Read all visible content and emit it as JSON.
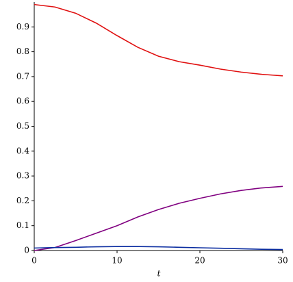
{
  "chart_data": {
    "type": "line",
    "x_label": "t",
    "x": [
      0,
      2.5,
      5,
      7.5,
      10,
      12.5,
      15,
      17.5,
      20,
      22.5,
      25,
      27.5,
      30
    ],
    "series": [
      {
        "color": "#e01010",
        "values": [
          0.99,
          0.98,
          0.955,
          0.915,
          0.865,
          0.818,
          0.782,
          0.76,
          0.746,
          0.73,
          0.718,
          0.709,
          0.703
        ]
      },
      {
        "color": "#800080",
        "values": [
          0,
          0.012,
          0.04,
          0.07,
          0.1,
          0.135,
          0.165,
          0.19,
          0.21,
          0.228,
          0.242,
          0.252,
          0.258
        ]
      },
      {
        "color": "#0a2ca0",
        "values": [
          0.01,
          0.012,
          0.013,
          0.015,
          0.016,
          0.016,
          0.015,
          0.013,
          0.011,
          0.009,
          0.007,
          0.005,
          0.004
        ]
      }
    ],
    "xlim": [
      0,
      30
    ],
    "xticks": [
      0,
      10,
      20,
      30
    ],
    "ylim": [
      0,
      1
    ],
    "yticks": [
      0,
      0.1,
      0.2,
      0.3,
      0.4,
      0.5,
      0.6,
      0.7,
      0.8,
      0.9
    ]
  }
}
